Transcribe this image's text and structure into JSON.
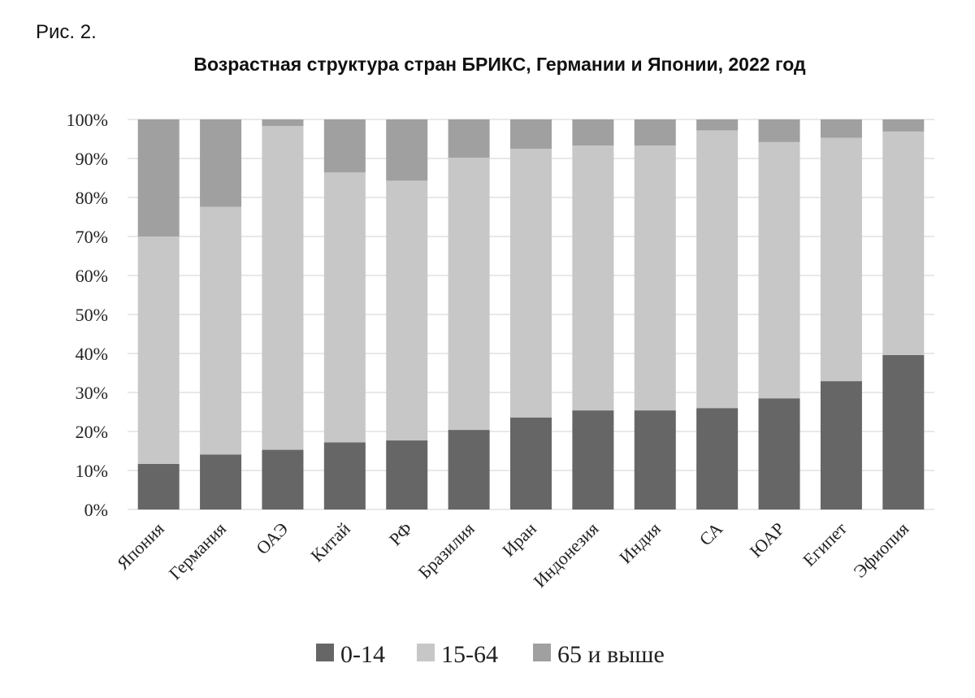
{
  "figure_label": "Рис. 2.",
  "chart_data": {
    "type": "bar",
    "stacked": true,
    "title": "Возрастная структура стран БРИКС, Германии и Японии, 2022 год",
    "xlabel": "",
    "ylabel": "",
    "ylim": [
      0,
      100
    ],
    "y_ticks": [
      "0%",
      "10%",
      "20%",
      "30%",
      "40%",
      "50%",
      "60%",
      "70%",
      "80%",
      "90%",
      "100%"
    ],
    "grid": true,
    "legend_position": "bottom",
    "categories": [
      "Япония",
      "Германия",
      "ОАЭ",
      "Китай",
      "РФ",
      "Бразилия",
      "Иран",
      "Индонезия",
      "Индия",
      "СА",
      "ЮАР",
      "Египет",
      "Эфиопия"
    ],
    "series": [
      {
        "name": "0-14",
        "color": "#666666",
        "values": [
          11.7,
          14.1,
          15.3,
          17.2,
          17.7,
          20.4,
          23.6,
          25.4,
          25.4,
          26.0,
          28.5,
          32.9,
          39.6
        ]
      },
      {
        "name": "15-64",
        "color": "#c7c7c7",
        "values": [
          58.3,
          63.5,
          83.0,
          69.2,
          66.6,
          69.8,
          68.9,
          67.9,
          67.9,
          71.2,
          65.7,
          62.4,
          57.3
        ]
      },
      {
        "name": "65 и выше",
        "color": "#a0a0a0",
        "values": [
          30.0,
          22.4,
          1.7,
          13.6,
          15.7,
          9.8,
          7.5,
          6.7,
          6.7,
          2.8,
          5.8,
          4.7,
          3.1
        ]
      }
    ]
  }
}
